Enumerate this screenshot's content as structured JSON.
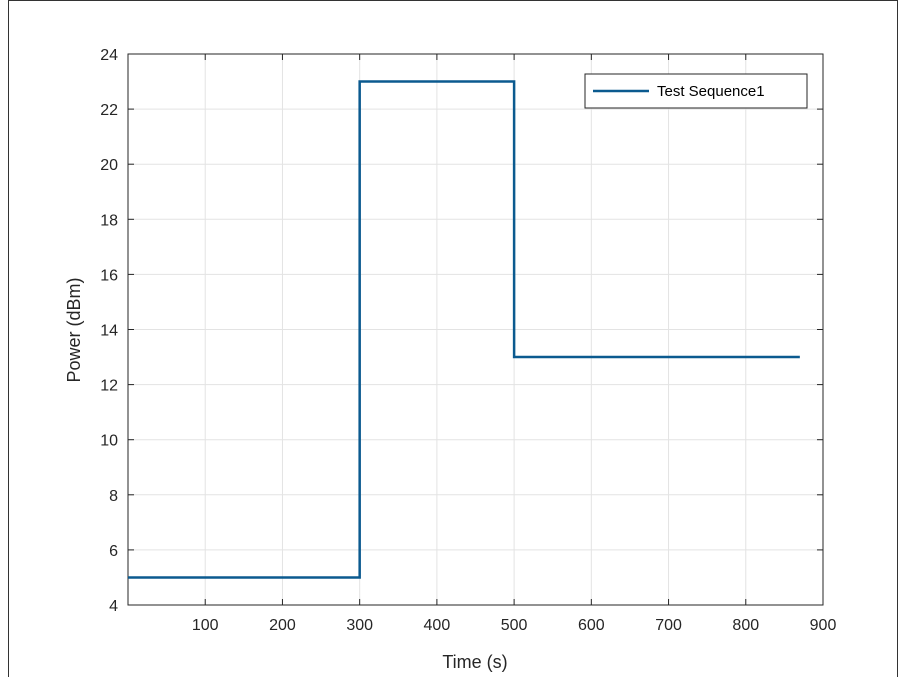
{
  "chart_data": {
    "type": "line",
    "xlabel": "Time (s)",
    "ylabel": "Power (dBm)",
    "xlim": [
      0,
      900
    ],
    "ylim": [
      4,
      24
    ],
    "xticks": [
      100,
      200,
      300,
      400,
      500,
      600,
      700,
      800,
      900
    ],
    "yticks": [
      4,
      6,
      8,
      10,
      12,
      14,
      16,
      18,
      20,
      22,
      24
    ],
    "grid": true,
    "legend_position": "top-right",
    "series": [
      {
        "name": "Test Sequence1",
        "color": "#0b5a8f",
        "step": true,
        "points": [
          [
            0,
            5
          ],
          [
            300,
            5
          ],
          [
            300,
            23
          ],
          [
            500,
            23
          ],
          [
            500,
            13
          ],
          [
            870,
            13
          ]
        ]
      }
    ]
  },
  "colors": {
    "grid": "#e3e3e3",
    "axis": "#262626",
    "frame": "#333333"
  }
}
